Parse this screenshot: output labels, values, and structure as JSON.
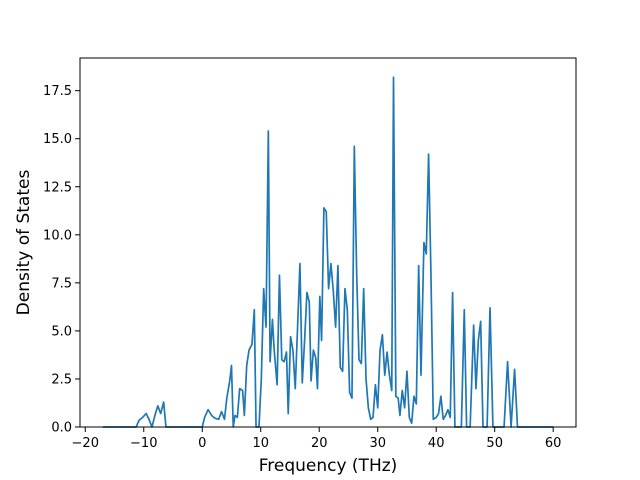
{
  "chart_data": {
    "type": "line",
    "title": "",
    "xlabel": "Frequency (THz)",
    "ylabel": "Density of States",
    "xlim": [
      -20.9,
      63.9
    ],
    "ylim": [
      0,
      19.2
    ],
    "x_ticks": [
      -20,
      -10,
      0,
      10,
      20,
      30,
      40,
      50,
      60
    ],
    "x_tick_labels": [
      "−20",
      "−10",
      "0",
      "10",
      "20",
      "30",
      "40",
      "50",
      "60"
    ],
    "y_ticks": [
      0,
      2.5,
      5,
      7.5,
      10,
      12.5,
      15,
      17.5
    ],
    "y_tick_labels": [
      "0.0",
      "2.5",
      "5.0",
      "7.5",
      "10.0",
      "12.5",
      "15.0",
      "17.5"
    ],
    "grid": false,
    "legend": "none",
    "series": [
      {
        "color": "#1f77b4",
        "points": [
          [
            -17.0,
            0
          ],
          [
            -11.3,
            0
          ],
          [
            -10.8,
            0.35
          ],
          [
            -10.2,
            0.5
          ],
          [
            -9.6,
            0.7
          ],
          [
            -9.1,
            0.4
          ],
          [
            -8.6,
            0
          ],
          [
            -8.1,
            0.6
          ],
          [
            -7.6,
            1.1
          ],
          [
            -7.1,
            0.7
          ],
          [
            -6.6,
            1.3
          ],
          [
            -6.2,
            0
          ],
          [
            0.0,
            0
          ],
          [
            0.4,
            0.5
          ],
          [
            1.0,
            0.9
          ],
          [
            1.6,
            0.6
          ],
          [
            2.2,
            0.45
          ],
          [
            2.8,
            0.4
          ],
          [
            3.3,
            0.8
          ],
          [
            3.8,
            0.4
          ],
          [
            4.2,
            1.5
          ],
          [
            4.7,
            2.4
          ],
          [
            5.0,
            3.2
          ],
          [
            5.3,
            0
          ],
          [
            5.6,
            0.6
          ],
          [
            6.0,
            0.5
          ],
          [
            6.4,
            2.0
          ],
          [
            6.9,
            1.9
          ],
          [
            7.2,
            0.6
          ],
          [
            7.6,
            3.2
          ],
          [
            8.0,
            4.0
          ],
          [
            8.5,
            4.3
          ],
          [
            8.9,
            6.1
          ],
          [
            9.2,
            0
          ],
          [
            9.7,
            0
          ],
          [
            10.1,
            2.5
          ],
          [
            10.5,
            7.2
          ],
          [
            10.9,
            5.2
          ],
          [
            11.3,
            15.4
          ],
          [
            11.6,
            3.4
          ],
          [
            12.0,
            5.6
          ],
          [
            12.3,
            4.0
          ],
          [
            12.8,
            2.2
          ],
          [
            13.2,
            7.9
          ],
          [
            13.6,
            3.5
          ],
          [
            14.0,
            3.4
          ],
          [
            14.4,
            3.9
          ],
          [
            14.7,
            0.7
          ],
          [
            15.1,
            4.7
          ],
          [
            15.5,
            4.0
          ],
          [
            15.9,
            2.0
          ],
          [
            16.3,
            5.2
          ],
          [
            16.7,
            8.5
          ],
          [
            17.1,
            2.3
          ],
          [
            17.5,
            4.5
          ],
          [
            17.9,
            7.0
          ],
          [
            18.3,
            6.5
          ],
          [
            18.6,
            2.4
          ],
          [
            19.0,
            4.0
          ],
          [
            19.4,
            3.6
          ],
          [
            19.7,
            2.0
          ],
          [
            20.1,
            6.8
          ],
          [
            20.4,
            4.5
          ],
          [
            20.8,
            11.4
          ],
          [
            21.2,
            11.2
          ],
          [
            21.6,
            7.2
          ],
          [
            22.0,
            8.5
          ],
          [
            22.4,
            7.1
          ],
          [
            22.8,
            5.2
          ],
          [
            23.2,
            8.4
          ],
          [
            23.6,
            3.1
          ],
          [
            24.0,
            2.9
          ],
          [
            24.4,
            7.2
          ],
          [
            24.8,
            6.1
          ],
          [
            25.2,
            1.8
          ],
          [
            25.6,
            1.5
          ],
          [
            26.0,
            14.6
          ],
          [
            26.4,
            8.0
          ],
          [
            26.8,
            3.5
          ],
          [
            27.2,
            3.3
          ],
          [
            27.6,
            7.2
          ],
          [
            28.0,
            2.5
          ],
          [
            28.4,
            1.0
          ],
          [
            28.8,
            0.4
          ],
          [
            29.2,
            0.5
          ],
          [
            29.6,
            2.2
          ],
          [
            30.0,
            1.0
          ],
          [
            30.4,
            4.0
          ],
          [
            30.8,
            4.8
          ],
          [
            31.2,
            2.7
          ],
          [
            31.6,
            3.9
          ],
          [
            32.0,
            2.7
          ],
          [
            32.4,
            1.9
          ],
          [
            32.7,
            18.2
          ],
          [
            33.1,
            1.6
          ],
          [
            33.5,
            1.5
          ],
          [
            33.8,
            0.6
          ],
          [
            34.2,
            1.9
          ],
          [
            34.6,
            1.0
          ],
          [
            35.0,
            2.9
          ],
          [
            35.4,
            0.5
          ],
          [
            35.8,
            0.2
          ],
          [
            36.2,
            1.6
          ],
          [
            36.6,
            1.2
          ],
          [
            37.0,
            8.4
          ],
          [
            37.4,
            2.7
          ],
          [
            37.9,
            9.6
          ],
          [
            38.3,
            9.0
          ],
          [
            38.7,
            14.2
          ],
          [
            39.1,
            8.0
          ],
          [
            39.5,
            0.4
          ],
          [
            40.0,
            0.5
          ],
          [
            40.4,
            0.7
          ],
          [
            40.8,
            1.6
          ],
          [
            41.2,
            0.4
          ],
          [
            41.6,
            0.6
          ],
          [
            42.0,
            0.9
          ],
          [
            42.4,
            0.5
          ],
          [
            42.8,
            7.0
          ],
          [
            43.2,
            0
          ],
          [
            43.8,
            0
          ],
          [
            44.3,
            0
          ],
          [
            44.8,
            6.1
          ],
          [
            45.2,
            0
          ],
          [
            45.8,
            0
          ],
          [
            46.4,
            5.3
          ],
          [
            46.8,
            2.0
          ],
          [
            47.2,
            4.5
          ],
          [
            47.6,
            5.5
          ],
          [
            48.0,
            0
          ],
          [
            48.7,
            0
          ],
          [
            49.2,
            6.2
          ],
          [
            49.7,
            0
          ],
          [
            51.6,
            0
          ],
          [
            52.2,
            3.4
          ],
          [
            52.8,
            0
          ],
          [
            53.4,
            3.0
          ],
          [
            53.9,
            0
          ],
          [
            60.0,
            0
          ]
        ]
      }
    ]
  }
}
